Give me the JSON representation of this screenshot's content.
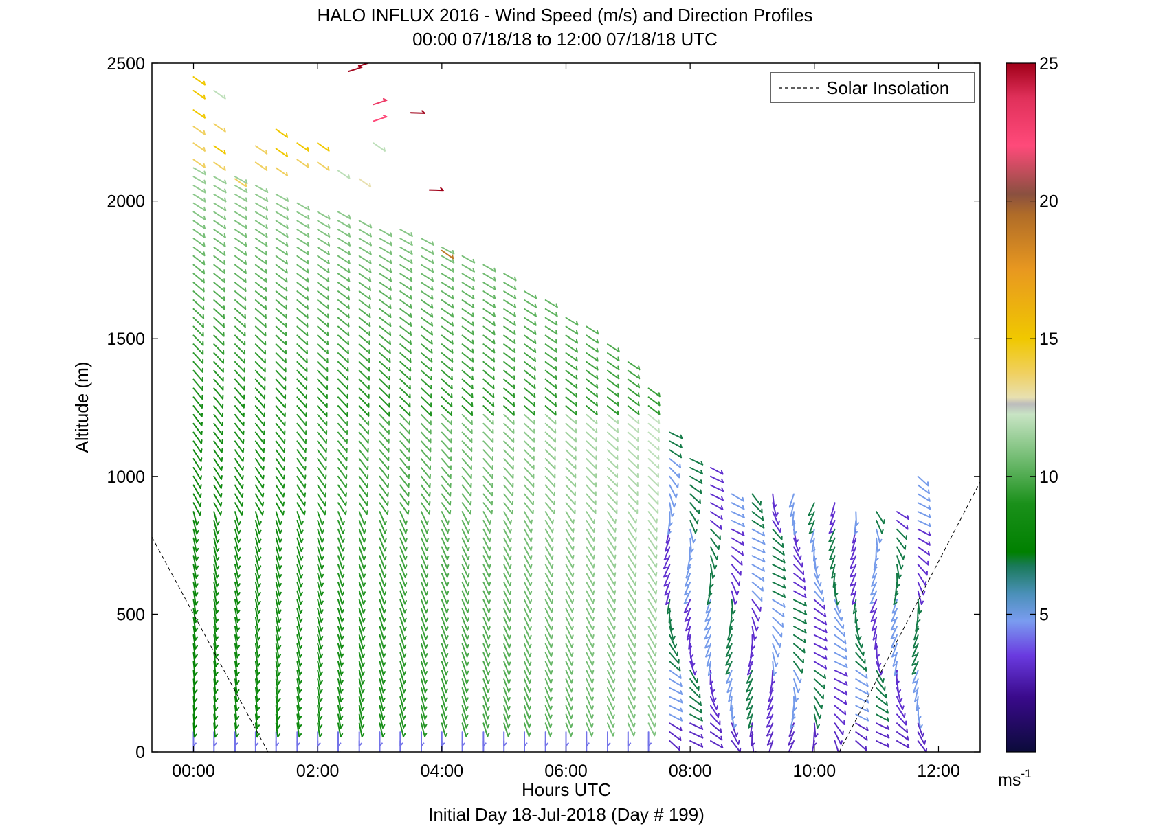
{
  "chart_data": {
    "type": "wind-barb-profile",
    "title": "HALO INFLUX 2016 - Wind Speed (m/s) and Direction Profiles",
    "subtitle": "00:00 07/18/18 to 12:00 07/18/18  UTC",
    "xlabel": "Hours UTC",
    "xsublabel": "Initial Day 18-Jul-2018 (Day # 199)",
    "ylabel": "Altitude (m)",
    "xlim": [
      -0.67,
      12.67
    ],
    "ylim": [
      0,
      2500
    ],
    "x_ticks": [
      {
        "v": 0,
        "label": "00:00"
      },
      {
        "v": 2,
        "label": "02:00"
      },
      {
        "v": 4,
        "label": "04:00"
      },
      {
        "v": 6,
        "label": "06:00"
      },
      {
        "v": 8,
        "label": "08:00"
      },
      {
        "v": 10,
        "label": "10:00"
      },
      {
        "v": 12,
        "label": "12:00"
      }
    ],
    "y_ticks": [
      {
        "v": 0,
        "label": "0"
      },
      {
        "v": 500,
        "label": "500"
      },
      {
        "v": 1000,
        "label": "1000"
      },
      {
        "v": 1500,
        "label": "1500"
      },
      {
        "v": 2000,
        "label": "2000"
      },
      {
        "v": 2500,
        "label": "2500"
      }
    ],
    "legend": {
      "entries": [
        "Solar Insolation"
      ],
      "position": "top-right",
      "style": "dashed"
    },
    "colorbar": {
      "range": [
        0,
        25
      ],
      "ticks": [
        {
          "v": 5,
          "label": "5"
        },
        {
          "v": 10,
          "label": "10"
        },
        {
          "v": 15,
          "label": "15"
        },
        {
          "v": 20,
          "label": "20"
        },
        {
          "v": 25,
          "label": "25"
        }
      ],
      "unit_base": "ms",
      "unit_exp": "-1"
    },
    "solar_insolation": {
      "left_segment": [
        [
          -0.67,
          780
        ],
        [
          1.2,
          0
        ]
      ],
      "right_segment": [
        [
          10.4,
          0
        ],
        [
          12.67,
          980
        ]
      ]
    },
    "profile_times_hours": [
      0,
      0.33,
      0.67,
      1,
      1.33,
      1.67,
      2,
      2.33,
      2.67,
      3,
      3.33,
      3.67,
      4,
      4.33,
      4.67,
      5,
      5.33,
      5.67,
      6,
      6.33,
      6.67,
      7,
      7.33,
      7.67,
      8,
      8.33,
      8.67,
      9,
      9.33,
      9.67,
      10,
      10.33,
      10.67,
      11,
      11.33,
      11.67
    ],
    "profile_top_altitudes_m": [
      2120,
      2110,
      2090,
      2060,
      2030,
      2000,
      1980,
      1960,
      1940,
      1920,
      1900,
      1870,
      1840,
      1810,
      1780,
      1760,
      1700,
      1660,
      1600,
      1550,
      1480,
      1420,
      1330,
      1180,
      1080,
      1060,
      960,
      960,
      960,
      960,
      920,
      920,
      900,
      900,
      890,
      1000
    ],
    "upper_layer_barbs": [
      {
        "t": 0,
        "z": 2450,
        "speed": 15
      },
      {
        "t": 0,
        "z": 2400,
        "speed": 15
      },
      {
        "t": 0,
        "z": 2330,
        "speed": 15
      },
      {
        "t": 0,
        "z": 2270,
        "speed": 14
      },
      {
        "t": 0,
        "z": 2210,
        "speed": 14
      },
      {
        "t": 0,
        "z": 2150,
        "speed": 14
      },
      {
        "t": 0.33,
        "z": 2400,
        "speed": 12
      },
      {
        "t": 0.33,
        "z": 2280,
        "speed": 14
      },
      {
        "t": 0.33,
        "z": 2200,
        "speed": 15
      },
      {
        "t": 0.33,
        "z": 2140,
        "speed": 14
      },
      {
        "t": 0.67,
        "z": 2080,
        "speed": 14
      },
      {
        "t": 1,
        "z": 2200,
        "speed": 14
      },
      {
        "t": 1,
        "z": 2140,
        "speed": 14
      },
      {
        "t": 1.33,
        "z": 2260,
        "speed": 15
      },
      {
        "t": 1.33,
        "z": 2190,
        "speed": 15
      },
      {
        "t": 1.33,
        "z": 2120,
        "speed": 14
      },
      {
        "t": 1.67,
        "z": 2210,
        "speed": 15
      },
      {
        "t": 1.67,
        "z": 2150,
        "speed": 14
      },
      {
        "t": 2,
        "z": 2210,
        "speed": 15
      },
      {
        "t": 2,
        "z": 2140,
        "speed": 14
      },
      {
        "t": 2.33,
        "z": 2110,
        "speed": 12
      },
      {
        "t": 2.67,
        "z": 2080,
        "speed": 13
      },
      {
        "t": 2.5,
        "z": 2470,
        "speed": 25
      },
      {
        "t": 2.67,
        "z": 2490,
        "speed": 25
      },
      {
        "t": 2.9,
        "z": 2350,
        "speed": 23
      },
      {
        "t": 2.9,
        "z": 2290,
        "speed": 22
      },
      {
        "t": 2.9,
        "z": 2210,
        "speed": 12
      },
      {
        "t": 3.5,
        "z": 2320,
        "speed": 25
      },
      {
        "t": 3.8,
        "z": 2040,
        "speed": 25
      },
      {
        "t": 4,
        "z": 1820,
        "speed": 19
      }
    ]
  }
}
